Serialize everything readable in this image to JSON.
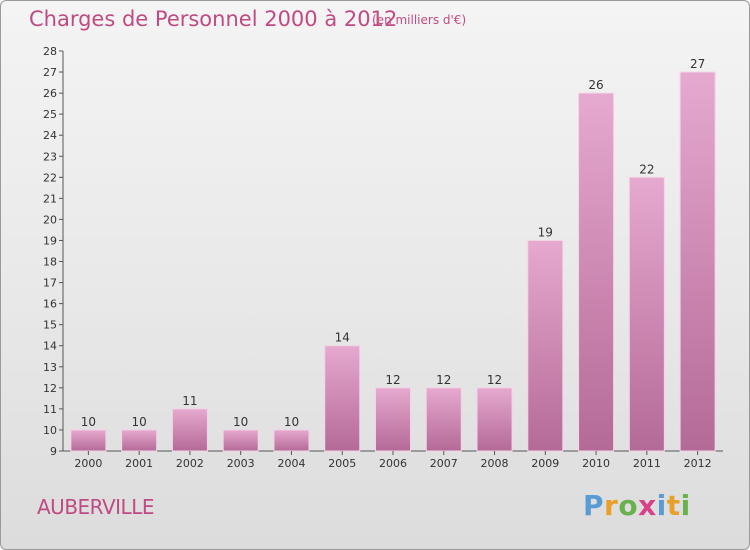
{
  "header": {
    "title": "Charges de Personnel 2000 à 2012",
    "subtitle": "(en milliers d'€)"
  },
  "footer": {
    "commune": "AUBERVILLE",
    "logo": "Proxiti"
  },
  "colors": {
    "title": "#c04a83",
    "bar_top": "#e6a9cf",
    "bar_bottom": "#b46a97",
    "axis": "#555555"
  },
  "chart_data": {
    "type": "bar",
    "categories": [
      "2000",
      "2001",
      "2002",
      "2003",
      "2004",
      "2005",
      "2006",
      "2007",
      "2008",
      "2009",
      "2010",
      "2011",
      "2012"
    ],
    "values": [
      10,
      10,
      11,
      10,
      10,
      14,
      12,
      12,
      12,
      19,
      26,
      22,
      27
    ],
    "title": "Charges de Personnel 2000 à 2012",
    "subtitle": "(en milliers d'€)",
    "xlabel": "",
    "ylabel": "",
    "ylim": [
      9,
      28
    ],
    "yticks": [
      9,
      10,
      11,
      12,
      13,
      14,
      15,
      16,
      17,
      18,
      19,
      20,
      21,
      22,
      23,
      24,
      25,
      26,
      27,
      28
    ],
    "grid": false,
    "data_labels": true
  }
}
